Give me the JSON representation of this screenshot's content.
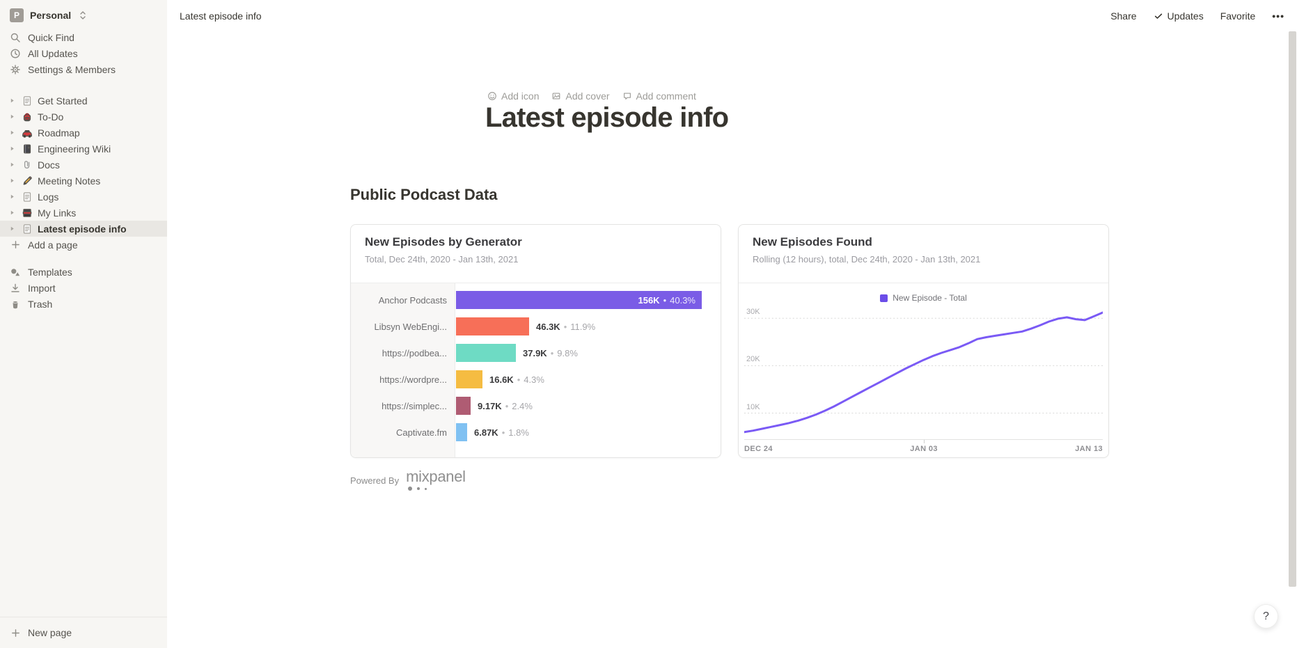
{
  "workspace": {
    "avatar_letter": "P",
    "name": "Personal"
  },
  "sidebar": {
    "menu": [
      {
        "icon": "search-icon",
        "label": "Quick Find"
      },
      {
        "icon": "clock-icon",
        "label": "All Updates"
      },
      {
        "icon": "gear-icon",
        "label": "Settings & Members"
      }
    ],
    "pages": [
      {
        "icon": "page-icon",
        "label": "Get Started",
        "selected": false
      },
      {
        "icon": "backpack-icon",
        "label": "To-Do",
        "selected": false
      },
      {
        "icon": "car-icon",
        "label": "Roadmap",
        "selected": false
      },
      {
        "icon": "notebook-icon",
        "label": "Engineering Wiki",
        "selected": false
      },
      {
        "icon": "paperclip-icon",
        "label": "Docs",
        "selected": false
      },
      {
        "icon": "pencil-icon",
        "label": "Meeting Notes",
        "selected": false
      },
      {
        "icon": "page-icon",
        "label": "Logs",
        "selected": false
      },
      {
        "icon": "books-icon",
        "label": "My Links",
        "selected": false
      },
      {
        "icon": "page-icon",
        "label": "Latest episode info",
        "selected": true
      }
    ],
    "add_page_label": "Add a page",
    "footer_menu": [
      {
        "icon": "templates-icon",
        "label": "Templates"
      },
      {
        "icon": "import-icon",
        "label": "Import"
      },
      {
        "icon": "trash-icon",
        "label": "Trash"
      }
    ],
    "new_page_label": "New page"
  },
  "topbar": {
    "breadcrumb": "Latest episode info",
    "share": "Share",
    "updates": "Updates",
    "favorite": "Favorite",
    "more": "•••"
  },
  "page": {
    "add_icon": "Add icon",
    "add_cover": "Add cover",
    "add_comment": "Add comment",
    "title": "Latest episode info",
    "section_heading": "Public Podcast Data",
    "powered_by": "Powered By",
    "brand": "mixpanel"
  },
  "help_label": "?",
  "chart_data": [
    {
      "type": "bar",
      "orientation": "horizontal",
      "title": "New Episodes by Generator",
      "subtitle": "Total, Dec 24th, 2020 - Jan 13th, 2021",
      "categories": [
        "Anchor Podcasts",
        "Libsyn WebEngi...",
        "https://podbea...",
        "https://wordpre...",
        "https://simplec...",
        "Captivate.fm"
      ],
      "values": [
        156000,
        46300,
        37900,
        16600,
        9170,
        6870
      ],
      "value_labels": [
        "156K",
        "46.3K",
        "37.9K",
        "16.6K",
        "9.17K",
        "6.87K"
      ],
      "percent_labels": [
        "40.3%",
        "11.9%",
        "9.8%",
        "4.3%",
        "2.4%",
        "1.8%"
      ],
      "separator": "•",
      "bar_colors": [
        "#7a5ce6",
        "#f76f58",
        "#6edbc4",
        "#f5bc42",
        "#af5c73",
        "#80c1f2"
      ],
      "xlim": [
        0,
        156000
      ]
    },
    {
      "type": "line",
      "title": "New Episodes Found",
      "subtitle": "Rolling (12 hours), total, Dec 24th, 2020 - Jan 13th, 2021",
      "legend": [
        {
          "label": "New Episode - Total",
          "color": "#6b4de8"
        }
      ],
      "line_color": "#7a5af5",
      "grid": "dashed-horizontal",
      "ylim": [
        4500,
        31500
      ],
      "y_ticks": [
        10000,
        20000,
        30000
      ],
      "y_tick_labels": [
        "10K",
        "20K",
        "30K"
      ],
      "x_tick_labels": [
        "DEC 24",
        "JAN 03",
        "JAN 13"
      ],
      "values": [
        6000,
        6300,
        6700,
        7100,
        7500,
        7900,
        8400,
        9000,
        9700,
        10500,
        11400,
        12400,
        13400,
        14400,
        15400,
        16400,
        17400,
        18400,
        19400,
        20300,
        21200,
        22000,
        22700,
        23300,
        23900,
        24700,
        25600,
        26000,
        26300,
        26600,
        26900,
        27200,
        27800,
        28500,
        29300,
        29900,
        30200,
        29800,
        29600,
        30400,
        31200
      ]
    }
  ]
}
